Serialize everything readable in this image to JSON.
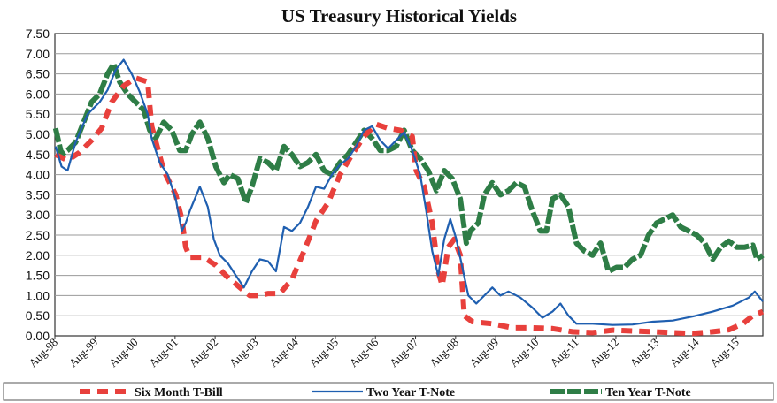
{
  "chart_data": {
    "type": "line",
    "title": "US Treasury Historical Yields",
    "xlabel": "",
    "ylabel": "",
    "ylim": [
      0,
      7.5
    ],
    "grid": true,
    "legend_position": "bottom",
    "yticks": [
      "0.00",
      "0.50",
      "1.00",
      "1.50",
      "2.00",
      "2.50",
      "3.00",
      "3.50",
      "4.00",
      "4.50",
      "5.00",
      "5.50",
      "6.00",
      "6.50",
      "7.00",
      "7.50"
    ],
    "xticks": [
      "Aug-98",
      "Aug-99",
      "Aug-00",
      "Aug-01",
      "Aug-02",
      "Aug-03",
      "Aug-04",
      "Aug-05",
      "Aug-06",
      "Aug-07",
      "Aug-08",
      "Aug-09",
      "Aug-10",
      "Aug-11",
      "Aug-12",
      "Aug-13",
      "Aug-14",
      "Aug-15"
    ],
    "x_range": [
      1998.583,
      2016.25
    ],
    "series": [
      {
        "name": "Six Month T-Bill",
        "color": "#e8403c",
        "style": "dashed",
        "points": [
          [
            1998.6,
            4.5
          ],
          [
            1998.9,
            4.35
          ],
          [
            1999.2,
            4.55
          ],
          [
            1999.5,
            4.85
          ],
          [
            1999.75,
            5.15
          ],
          [
            2000.0,
            5.8
          ],
          [
            2000.3,
            6.2
          ],
          [
            2000.6,
            6.4
          ],
          [
            2000.9,
            6.3
          ],
          [
            2001.0,
            5.2
          ],
          [
            2001.3,
            4.1
          ],
          [
            2001.6,
            3.5
          ],
          [
            2001.75,
            2.9
          ],
          [
            2001.85,
            2.2
          ],
          [
            2001.95,
            1.95
          ],
          [
            2002.3,
            1.95
          ],
          [
            2002.6,
            1.75
          ],
          [
            2002.9,
            1.45
          ],
          [
            2003.2,
            1.2
          ],
          [
            2003.45,
            1.0
          ],
          [
            2003.7,
            1.0
          ],
          [
            2003.9,
            1.05
          ],
          [
            2004.2,
            1.05
          ],
          [
            2004.5,
            1.4
          ],
          [
            2004.8,
            2.1
          ],
          [
            2005.1,
            2.85
          ],
          [
            2005.4,
            3.3
          ],
          [
            2005.7,
            4.0
          ],
          [
            2006.0,
            4.5
          ],
          [
            2006.3,
            4.95
          ],
          [
            2006.6,
            5.25
          ],
          [
            2006.9,
            5.15
          ],
          [
            2007.2,
            5.1
          ],
          [
            2007.5,
            4.95
          ],
          [
            2007.6,
            4.1
          ],
          [
            2007.8,
            3.7
          ],
          [
            2008.0,
            2.8
          ],
          [
            2008.15,
            1.6
          ],
          [
            2008.25,
            1.25
          ],
          [
            2008.4,
            2.2
          ],
          [
            2008.55,
            2.4
          ],
          [
            2008.7,
            2.0
          ],
          [
            2008.8,
            0.5
          ],
          [
            2009.0,
            0.35
          ],
          [
            2009.5,
            0.3
          ],
          [
            2010.0,
            0.2
          ],
          [
            2010.5,
            0.2
          ],
          [
            2011.0,
            0.18
          ],
          [
            2011.5,
            0.1
          ],
          [
            2012.0,
            0.08
          ],
          [
            2012.5,
            0.14
          ],
          [
            2013.0,
            0.12
          ],
          [
            2013.5,
            0.1
          ],
          [
            2014.0,
            0.08
          ],
          [
            2014.5,
            0.06
          ],
          [
            2015.0,
            0.1
          ],
          [
            2015.4,
            0.15
          ],
          [
            2015.75,
            0.3
          ],
          [
            2016.0,
            0.5
          ],
          [
            2016.25,
            0.6
          ]
        ]
      },
      {
        "name": "Two Year T-Note",
        "color": "#1f5fb0",
        "style": "solid",
        "points": [
          [
            1998.6,
            4.7
          ],
          [
            1998.75,
            4.2
          ],
          [
            1998.9,
            4.1
          ],
          [
            1999.1,
            4.8
          ],
          [
            1999.4,
            5.5
          ],
          [
            1999.7,
            5.8
          ],
          [
            1999.9,
            6.1
          ],
          [
            2000.1,
            6.6
          ],
          [
            2000.3,
            6.85
          ],
          [
            2000.5,
            6.5
          ],
          [
            2000.7,
            6.05
          ],
          [
            2000.9,
            5.5
          ],
          [
            2001.0,
            4.9
          ],
          [
            2001.2,
            4.3
          ],
          [
            2001.4,
            4.0
          ],
          [
            2001.6,
            3.4
          ],
          [
            2001.75,
            2.6
          ],
          [
            2001.85,
            2.8
          ],
          [
            2001.95,
            3.1
          ],
          [
            2002.2,
            3.7
          ],
          [
            2002.4,
            3.2
          ],
          [
            2002.55,
            2.4
          ],
          [
            2002.7,
            2.0
          ],
          [
            2002.9,
            1.8
          ],
          [
            2003.1,
            1.5
          ],
          [
            2003.3,
            1.2
          ],
          [
            2003.5,
            1.6
          ],
          [
            2003.7,
            1.9
          ],
          [
            2003.9,
            1.85
          ],
          [
            2004.1,
            1.6
          ],
          [
            2004.3,
            2.7
          ],
          [
            2004.5,
            2.6
          ],
          [
            2004.7,
            2.8
          ],
          [
            2004.9,
            3.2
          ],
          [
            2005.1,
            3.7
          ],
          [
            2005.3,
            3.65
          ],
          [
            2005.5,
            4.0
          ],
          [
            2005.7,
            4.25
          ],
          [
            2005.9,
            4.4
          ],
          [
            2006.1,
            4.7
          ],
          [
            2006.3,
            5.1
          ],
          [
            2006.5,
            5.2
          ],
          [
            2006.7,
            4.85
          ],
          [
            2006.9,
            4.65
          ],
          [
            2007.1,
            4.85
          ],
          [
            2007.3,
            5.05
          ],
          [
            2007.5,
            4.6
          ],
          [
            2007.7,
            4.0
          ],
          [
            2007.85,
            3.1
          ],
          [
            2008.0,
            2.1
          ],
          [
            2008.15,
            1.5
          ],
          [
            2008.3,
            2.4
          ],
          [
            2008.45,
            2.9
          ],
          [
            2008.6,
            2.4
          ],
          [
            2008.75,
            1.7
          ],
          [
            2008.9,
            1.0
          ],
          [
            2009.1,
            0.8
          ],
          [
            2009.3,
            1.0
          ],
          [
            2009.5,
            1.2
          ],
          [
            2009.7,
            1.0
          ],
          [
            2009.9,
            1.1
          ],
          [
            2010.2,
            0.95
          ],
          [
            2010.5,
            0.7
          ],
          [
            2010.75,
            0.45
          ],
          [
            2011.0,
            0.6
          ],
          [
            2011.2,
            0.8
          ],
          [
            2011.4,
            0.5
          ],
          [
            2011.6,
            0.3
          ],
          [
            2012.0,
            0.3
          ],
          [
            2012.5,
            0.27
          ],
          [
            2013.0,
            0.28
          ],
          [
            2013.5,
            0.35
          ],
          [
            2014.0,
            0.38
          ],
          [
            2014.5,
            0.48
          ],
          [
            2015.0,
            0.6
          ],
          [
            2015.5,
            0.75
          ],
          [
            2015.9,
            0.95
          ],
          [
            2016.05,
            1.1
          ],
          [
            2016.25,
            0.85
          ]
        ]
      },
      {
        "name": "Ten Year T-Note",
        "color": "#2e7d46",
        "style": "dashed",
        "points": [
          [
            1998.6,
            5.15
          ],
          [
            1998.75,
            4.5
          ],
          [
            1998.9,
            4.6
          ],
          [
            1999.1,
            4.8
          ],
          [
            1999.3,
            5.3
          ],
          [
            1999.5,
            5.8
          ],
          [
            1999.7,
            6.0
          ],
          [
            1999.9,
            6.5
          ],
          [
            2000.05,
            6.75
          ],
          [
            2000.2,
            6.3
          ],
          [
            2000.4,
            6.0
          ],
          [
            2000.6,
            5.8
          ],
          [
            2000.8,
            5.6
          ],
          [
            2000.95,
            5.1
          ],
          [
            2001.1,
            4.9
          ],
          [
            2001.3,
            5.3
          ],
          [
            2001.5,
            5.1
          ],
          [
            2001.7,
            4.6
          ],
          [
            2001.85,
            4.6
          ],
          [
            2002.0,
            5.0
          ],
          [
            2002.2,
            5.3
          ],
          [
            2002.4,
            4.9
          ],
          [
            2002.6,
            4.2
          ],
          [
            2002.8,
            3.8
          ],
          [
            2002.95,
            4.0
          ],
          [
            2003.15,
            3.9
          ],
          [
            2003.35,
            3.3
          ],
          [
            2003.5,
            3.7
          ],
          [
            2003.7,
            4.4
          ],
          [
            2003.9,
            4.3
          ],
          [
            2004.1,
            4.1
          ],
          [
            2004.3,
            4.7
          ],
          [
            2004.5,
            4.5
          ],
          [
            2004.7,
            4.2
          ],
          [
            2004.9,
            4.3
          ],
          [
            2005.1,
            4.5
          ],
          [
            2005.3,
            4.1
          ],
          [
            2005.5,
            4.0
          ],
          [
            2005.7,
            4.3
          ],
          [
            2005.9,
            4.5
          ],
          [
            2006.1,
            4.8
          ],
          [
            2006.3,
            5.1
          ],
          [
            2006.5,
            4.9
          ],
          [
            2006.7,
            4.6
          ],
          [
            2006.9,
            4.6
          ],
          [
            2007.1,
            4.7
          ],
          [
            2007.3,
            5.1
          ],
          [
            2007.5,
            4.6
          ],
          [
            2007.7,
            4.4
          ],
          [
            2007.9,
            4.1
          ],
          [
            2008.1,
            3.6
          ],
          [
            2008.3,
            4.1
          ],
          [
            2008.5,
            3.9
          ],
          [
            2008.7,
            3.4
          ],
          [
            2008.85,
            2.3
          ],
          [
            2008.95,
            2.6
          ],
          [
            2009.15,
            2.8
          ],
          [
            2009.3,
            3.5
          ],
          [
            2009.5,
            3.8
          ],
          [
            2009.7,
            3.5
          ],
          [
            2009.9,
            3.6
          ],
          [
            2010.1,
            3.8
          ],
          [
            2010.3,
            3.7
          ],
          [
            2010.5,
            3.1
          ],
          [
            2010.7,
            2.6
          ],
          [
            2010.85,
            2.6
          ],
          [
            2011.0,
            3.4
          ],
          [
            2011.2,
            3.5
          ],
          [
            2011.4,
            3.2
          ],
          [
            2011.6,
            2.3
          ],
          [
            2011.8,
            2.1
          ],
          [
            2012.0,
            2.0
          ],
          [
            2012.2,
            2.3
          ],
          [
            2012.4,
            1.6
          ],
          [
            2012.6,
            1.7
          ],
          [
            2012.8,
            1.7
          ],
          [
            2013.0,
            1.9
          ],
          [
            2013.2,
            2.0
          ],
          [
            2013.4,
            2.5
          ],
          [
            2013.6,
            2.8
          ],
          [
            2013.8,
            2.9
          ],
          [
            2014.0,
            3.0
          ],
          [
            2014.2,
            2.7
          ],
          [
            2014.4,
            2.6
          ],
          [
            2014.6,
            2.5
          ],
          [
            2014.8,
            2.3
          ],
          [
            2015.0,
            1.9
          ],
          [
            2015.2,
            2.2
          ],
          [
            2015.4,
            2.35
          ],
          [
            2015.6,
            2.2
          ],
          [
            2015.8,
            2.2
          ],
          [
            2016.0,
            2.25
          ],
          [
            2016.1,
            1.9
          ],
          [
            2016.25,
            2.0
          ]
        ]
      }
    ]
  }
}
